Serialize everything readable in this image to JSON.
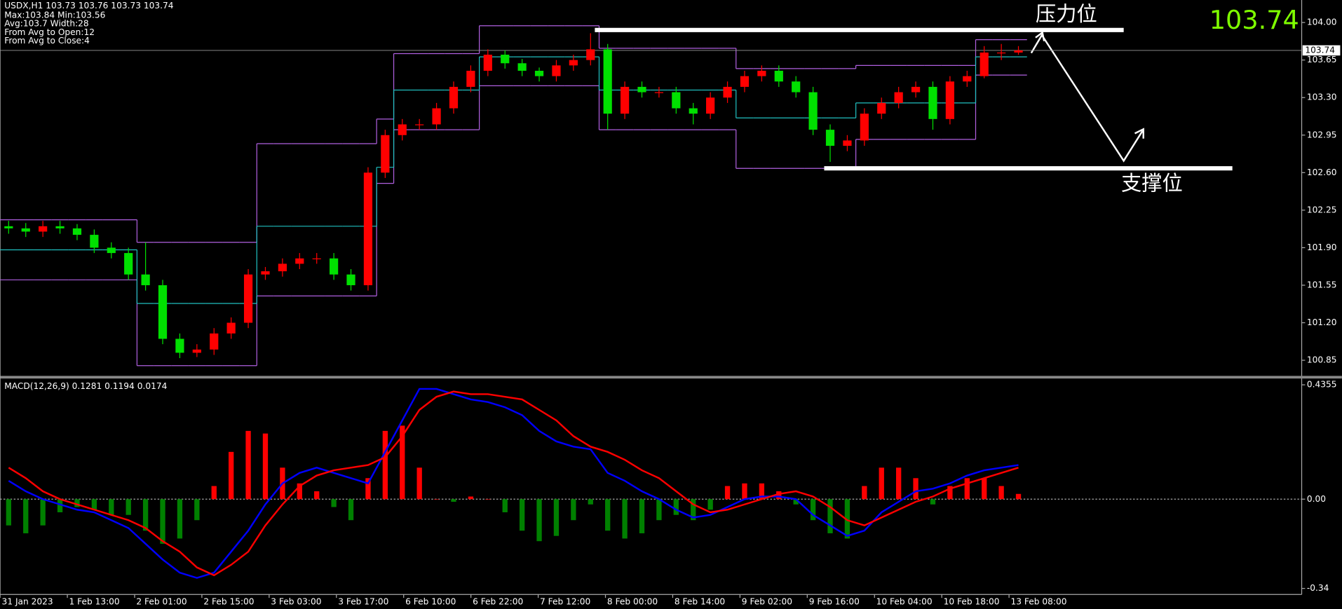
{
  "chart_data": {
    "type": "candlestick",
    "title": "USDX,H1  103.73 103.76 103.73 103.74",
    "info": [
      "Max:103.84 Min:103.56",
      "Avg:103.7 Width:28",
      "From Avg to Open:12",
      "From Avg to Close:4"
    ],
    "last_price": 103.74,
    "up_color": "#ff0000",
    "down_color": "#00e000",
    "channel_color": "#b060e0",
    "mid_color": "#20c0c0",
    "ylim": [
      100.7,
      104.21
    ],
    "yticks": [
      {
        "value": 100.85,
        "label": "100.85"
      },
      {
        "value": 101.2,
        "label": "101.20"
      },
      101.55,
      {
        "value": 101.9,
        "label": "101.90"
      },
      102.25,
      {
        "value": 102.6,
        "label": "102.60"
      },
      102.95,
      {
        "value": 103.3,
        "label": "103.30"
      },
      103.65,
      {
        "value": 104,
        "label": "104.00"
      }
    ],
    "x_labels": [
      "31 Jan 2023",
      "1 Feb 13:00",
      "2 Feb 01:00",
      "2 Feb 15:00",
      "3 Feb 03:00",
      "3 Feb 17:00",
      "6 Feb 10:00",
      "6 Feb 22:00",
      "7 Feb 12:00",
      "8 Feb 00:00",
      "8 Feb 14:00",
      "9 Feb 02:00",
      "9 Feb 16:00",
      "10 Feb 04:00",
      "10 Feb 18:00",
      "13 Feb 08:00"
    ],
    "annotations": [
      {
        "text": "压力位",
        "value": 103.93
      },
      {
        "text": "支撑位",
        "value": 102.64
      }
    ],
    "open": [
      102.1,
      102.08,
      102.05,
      102.1,
      102.08,
      102.02,
      101.9,
      101.85,
      101.65,
      101.55,
      101.05,
      100.92,
      100.95,
      101.1,
      101.2,
      101.65,
      101.68,
      101.75,
      101.8,
      101.8,
      101.65,
      101.55,
      102.6,
      102.95,
      103.05,
      103.05,
      103.2,
      103.4,
      103.55,
      103.7,
      103.62,
      103.55,
      103.5,
      103.6,
      103.65,
      103.75,
      103.15,
      103.4,
      103.35,
      103.35,
      103.2,
      103.15,
      103.3,
      103.4,
      103.5,
      103.55,
      103.45,
      103.35,
      103.0,
      102.85,
      102.9,
      103.15,
      103.25,
      103.35,
      103.4,
      103.1,
      103.45,
      103.5,
      103.72,
      103.72
    ],
    "high": [
      102.15,
      102.13,
      102.15,
      102.15,
      102.12,
      102.07,
      101.95,
      101.9,
      101.95,
      101.6,
      101.1,
      101.0,
      101.15,
      101.25,
      101.7,
      101.72,
      101.8,
      101.85,
      101.85,
      101.85,
      101.7,
      102.65,
      103.0,
      103.1,
      103.1,
      103.25,
      103.45,
      103.6,
      103.75,
      103.74,
      103.66,
      103.58,
      103.65,
      103.7,
      103.9,
      103.8,
      103.45,
      103.45,
      103.4,
      103.4,
      103.25,
      103.35,
      103.45,
      103.55,
      103.6,
      103.6,
      103.5,
      103.4,
      103.05,
      102.95,
      103.2,
      103.3,
      103.4,
      103.45,
      103.45,
      103.5,
      103.55,
      103.78,
      103.8,
      103.78
    ],
    "low": [
      102.03,
      102.0,
      102.0,
      102.03,
      101.97,
      101.85,
      101.8,
      101.6,
      101.5,
      101.0,
      100.87,
      100.88,
      100.9,
      101.05,
      101.15,
      101.6,
      101.63,
      101.7,
      101.75,
      101.6,
      101.5,
      101.5,
      102.55,
      102.9,
      103.0,
      103.0,
      103.15,
      103.35,
      103.5,
      103.57,
      103.5,
      103.45,
      103.45,
      103.55,
      103.6,
      103.0,
      103.1,
      103.3,
      103.3,
      103.15,
      103.05,
      103.1,
      103.25,
      103.35,
      103.45,
      103.4,
      103.3,
      102.95,
      102.7,
      102.8,
      102.85,
      103.1,
      103.2,
      103.3,
      103.0,
      103.05,
      103.4,
      103.48,
      103.65,
      103.7
    ],
    "close": [
      102.08,
      102.05,
      102.1,
      102.08,
      102.02,
      101.9,
      101.85,
      101.65,
      101.55,
      101.05,
      100.92,
      100.95,
      101.1,
      101.2,
      101.65,
      101.68,
      101.75,
      101.8,
      101.8,
      101.65,
      101.55,
      102.6,
      102.95,
      103.05,
      103.05,
      103.2,
      103.4,
      103.55,
      103.7,
      103.62,
      103.55,
      103.5,
      103.6,
      103.65,
      103.75,
      103.15,
      103.4,
      103.35,
      103.35,
      103.2,
      103.15,
      103.3,
      103.4,
      103.5,
      103.55,
      103.45,
      103.35,
      103.0,
      102.85,
      102.9,
      103.15,
      103.25,
      103.35,
      103.4,
      103.1,
      103.45,
      103.5,
      103.72,
      103.72,
      103.74
    ],
    "channel_upper": [
      102.16,
      102.16,
      102.16,
      102.16,
      102.16,
      102.16,
      102.16,
      102.16,
      101.95,
      101.95,
      101.95,
      101.95,
      101.95,
      101.95,
      101.95,
      102.87,
      102.87,
      102.87,
      102.87,
      102.87,
      102.87,
      102.87,
      103.1,
      103.71,
      103.71,
      103.71,
      103.71,
      103.71,
      103.97,
      103.97,
      103.97,
      103.97,
      103.97,
      103.97,
      103.97,
      103.76,
      103.76,
      103.76,
      103.76,
      103.76,
      103.76,
      103.76,
      103.76,
      103.57,
      103.57,
      103.57,
      103.57,
      103.57,
      103.57,
      103.57,
      103.6,
      103.6,
      103.6,
      103.6,
      103.6,
      103.6,
      103.6,
      103.84,
      103.84,
      103.84
    ],
    "channel_mid": [
      101.88,
      101.88,
      101.88,
      101.88,
      101.88,
      101.88,
      101.88,
      101.88,
      101.38,
      101.38,
      101.38,
      101.38,
      101.38,
      101.38,
      101.38,
      102.1,
      102.1,
      102.1,
      102.1,
      102.1,
      102.1,
      102.1,
      102.65,
      103.37,
      103.37,
      103.37,
      103.37,
      103.37,
      103.68,
      103.68,
      103.68,
      103.68,
      103.68,
      103.68,
      103.68,
      103.37,
      103.37,
      103.37,
      103.37,
      103.37,
      103.37,
      103.37,
      103.37,
      103.11,
      103.11,
      103.11,
      103.11,
      103.11,
      103.11,
      103.11,
      103.25,
      103.25,
      103.25,
      103.25,
      103.25,
      103.25,
      103.25,
      103.68,
      103.68,
      103.68
    ],
    "channel_lower": [
      101.6,
      101.6,
      101.6,
      101.6,
      101.6,
      101.6,
      101.6,
      101.6,
      100.8,
      100.8,
      100.8,
      100.8,
      100.8,
      100.8,
      100.8,
      101.45,
      101.45,
      101.45,
      101.45,
      101.45,
      101.45,
      101.45,
      102.5,
      103.0,
      103.0,
      103.0,
      103.0,
      103.0,
      103.41,
      103.41,
      103.41,
      103.41,
      103.41,
      103.41,
      103.41,
      103.0,
      103.0,
      103.0,
      103.0,
      103.0,
      103.0,
      103.0,
      103.0,
      102.64,
      102.64,
      102.64,
      102.64,
      102.64,
      102.64,
      102.64,
      102.91,
      102.91,
      102.91,
      102.91,
      102.91,
      102.91,
      102.91,
      103.51,
      103.51,
      103.51
    ],
    "macd": {
      "title": "MACD(12,26,9) 0.1281 0.1194 0.0174",
      "ylim": [
        -0.363,
        0.458
      ],
      "yticks": [
        -0.34,
        {
          "value": 0,
          "label": "0.00"
        },
        0.4355
      ],
      "zero_line": true,
      "hist_up_color": "#ff0000",
      "hist_down_color": "#008000",
      "histogram": [
        -0.1,
        -0.13,
        -0.1,
        -0.05,
        -0.03,
        -0.04,
        -0.06,
        -0.06,
        -0.12,
        -0.17,
        -0.15,
        -0.08,
        0.05,
        0.18,
        0.26,
        0.25,
        0.12,
        0.06,
        0.03,
        -0.03,
        -0.08,
        0.08,
        0.26,
        0.28,
        0.12,
        0.0,
        -0.01,
        0.01,
        0.0,
        -0.05,
        -0.12,
        -0.16,
        -0.14,
        -0.08,
        -0.02,
        -0.12,
        -0.15,
        -0.13,
        -0.08,
        -0.06,
        -0.08,
        -0.04,
        0.05,
        0.06,
        0.06,
        0.03,
        -0.02,
        -0.08,
        -0.13,
        -0.15,
        0.05,
        0.12,
        0.12,
        0.08,
        -0.02,
        0.05,
        0.08,
        0.08,
        0.05,
        0.02
      ],
      "series": [
        {
          "color": "#0000ff",
          "values": [
            0.07,
            0.03,
            0.0,
            -0.02,
            -0.04,
            -0.05,
            -0.08,
            -0.11,
            -0.17,
            -0.23,
            -0.28,
            -0.3,
            -0.28,
            -0.2,
            -0.12,
            -0.02,
            0.06,
            0.1,
            0.12,
            0.1,
            0.08,
            0.06,
            0.18,
            0.3,
            0.42,
            0.42,
            0.4,
            0.38,
            0.37,
            0.35,
            0.32,
            0.26,
            0.22,
            0.2,
            0.19,
            0.1,
            0.07,
            0.03,
            0.0,
            -0.04,
            -0.07,
            -0.06,
            -0.03,
            0.0,
            0.01,
            0.01,
            0.0,
            -0.06,
            -0.1,
            -0.14,
            -0.12,
            -0.05,
            -0.01,
            0.03,
            0.04,
            0.06,
            0.09,
            0.11,
            0.12,
            0.13
          ]
        },
        {
          "color": "#ff0000",
          "values": [
            0.12,
            0.08,
            0.03,
            0.0,
            -0.02,
            -0.04,
            -0.06,
            -0.08,
            -0.11,
            -0.16,
            -0.2,
            -0.26,
            -0.29,
            -0.25,
            -0.2,
            -0.1,
            -0.02,
            0.05,
            0.09,
            0.11,
            0.12,
            0.13,
            0.16,
            0.24,
            0.34,
            0.39,
            0.41,
            0.4,
            0.4,
            0.39,
            0.38,
            0.34,
            0.3,
            0.24,
            0.2,
            0.18,
            0.15,
            0.11,
            0.08,
            0.03,
            -0.02,
            -0.05,
            -0.04,
            -0.02,
            0.0,
            0.02,
            0.03,
            0.01,
            -0.03,
            -0.08,
            -0.1,
            -0.07,
            -0.04,
            -0.01,
            0.01,
            0.04,
            0.06,
            0.08,
            0.1,
            0.12
          ]
        }
      ]
    }
  }
}
